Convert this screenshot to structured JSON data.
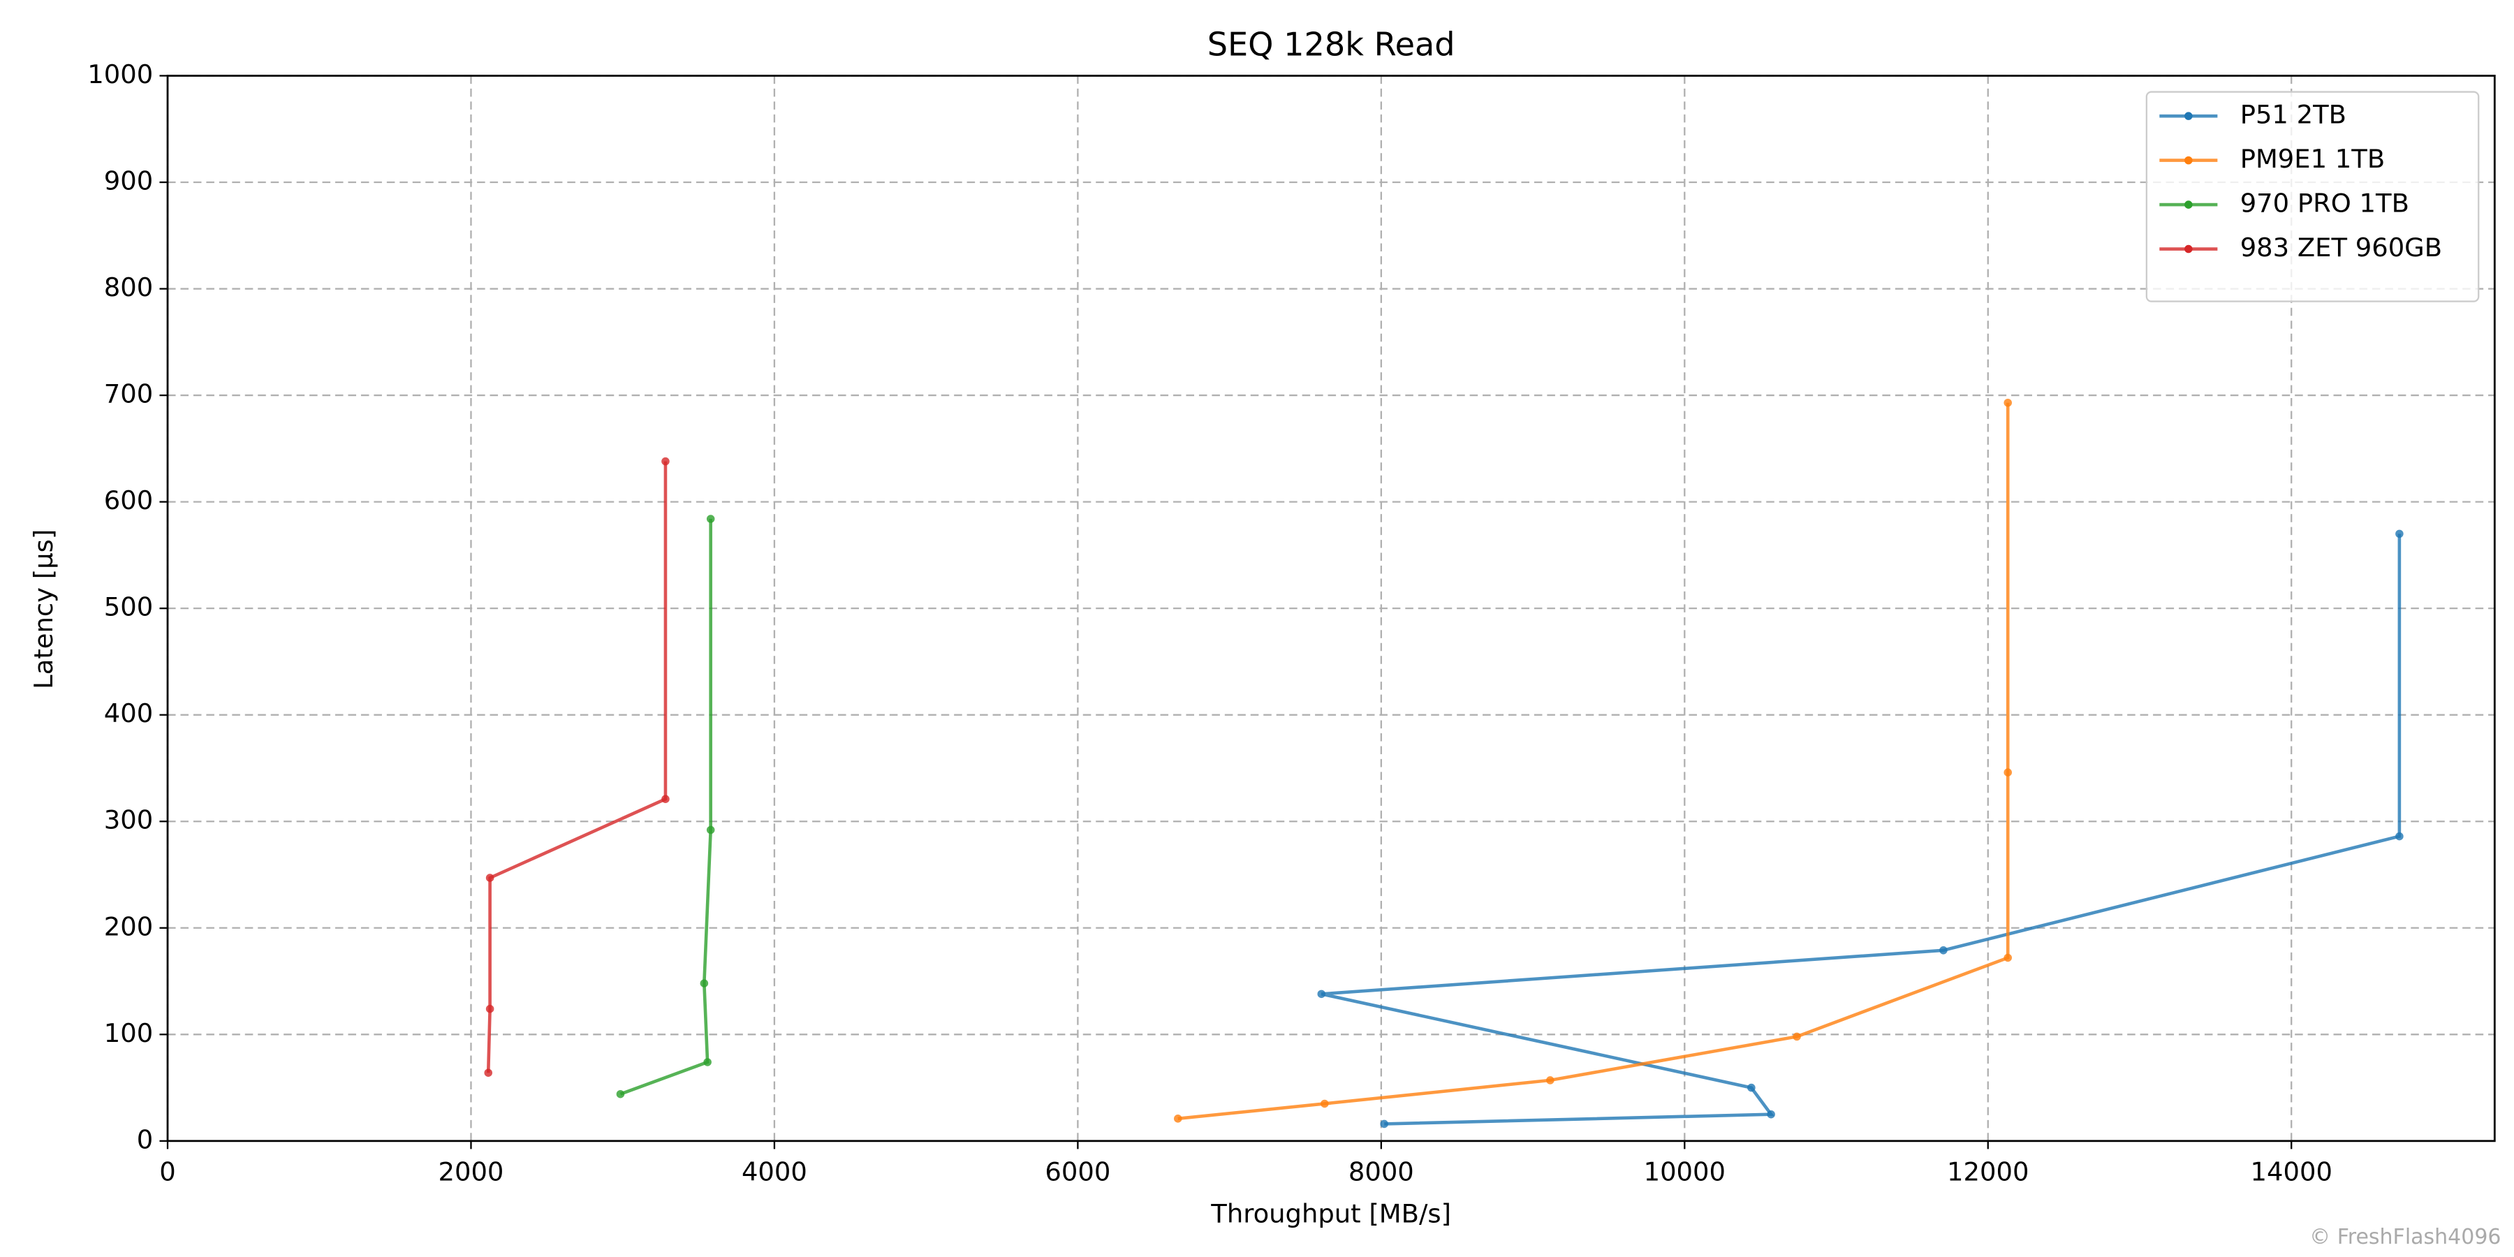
{
  "chart_data": {
    "type": "line",
    "title": "SEQ 128k Read",
    "xlabel": "Throughput [MB/s]",
    "ylabel": "Latency [µs]",
    "watermark": "© FreshFlash4096",
    "xlim": [
      0,
      15340
    ],
    "ylim": [
      0,
      1000
    ],
    "xticks": [
      0,
      2000,
      4000,
      6000,
      8000,
      10000,
      12000,
      14000
    ],
    "yticks": [
      0,
      100,
      200,
      300,
      400,
      500,
      600,
      700,
      800,
      900,
      1000
    ],
    "grid": true,
    "legend": "upper right",
    "series": [
      {
        "name": "P51 2TB",
        "color": "#1f77b4",
        "x": [
          8020,
          10570,
          10440,
          7606,
          11706,
          14712,
          14712
        ],
        "values": [
          16,
          25,
          50,
          138,
          179,
          286,
          570
        ]
      },
      {
        "name": "PM9E1 1TB",
        "color": "#ff7f0e",
        "x": [
          6660,
          7627,
          9114,
          10740,
          12131,
          12131,
          12131
        ],
        "values": [
          21,
          35,
          57,
          98,
          172,
          346,
          693
        ]
      },
      {
        "name": "970 PRO 1TB",
        "color": "#2ca02c",
        "x": [
          2985,
          3559,
          3537,
          3580,
          3580
        ],
        "values": [
          44,
          74,
          148,
          292,
          584
        ]
      },
      {
        "name": "983 ZET 960GB",
        "color": "#d62728",
        "x": [
          2114,
          2125,
          2125,
          3282,
          3282
        ],
        "values": [
          64,
          124,
          247,
          321,
          638
        ]
      }
    ]
  }
}
